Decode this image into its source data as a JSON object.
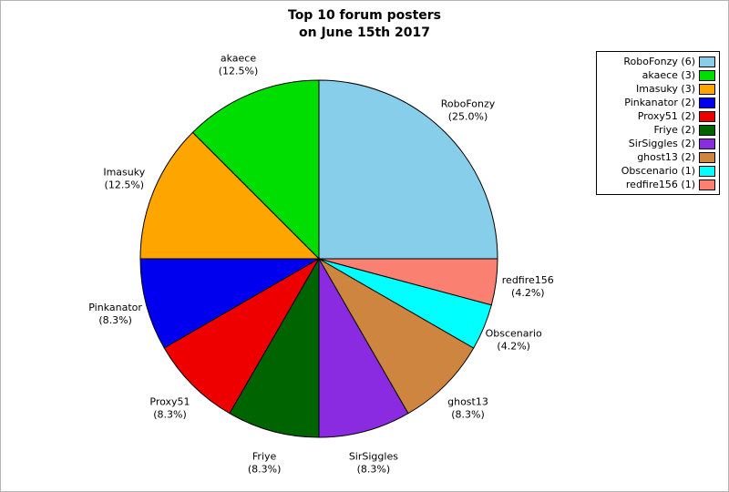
{
  "title": {
    "line1": "Top 10 forum posters",
    "line2": "on June 15th 2017"
  },
  "chart_data": {
    "type": "pie",
    "title": "Top 10 forum posters on June 15th 2017",
    "start_angle_deg": 0,
    "direction": "counterclockwise",
    "legend_position": "top-right",
    "slices": [
      {
        "label": "RoboFonzy",
        "count": 6,
        "value_percent": 25.0,
        "percent_label": "(25.0%)",
        "legend_label": "RoboFonzy (6)",
        "color": "#87CEEB"
      },
      {
        "label": "akaece",
        "count": 3,
        "value_percent": 12.5,
        "percent_label": "(12.5%)",
        "legend_label": "akaece (3)",
        "color": "#00DD00"
      },
      {
        "label": "Imasuky",
        "count": 3,
        "value_percent": 12.5,
        "percent_label": "(12.5%)",
        "legend_label": "Imasuky (3)",
        "color": "#FFA500"
      },
      {
        "label": "Pinkanator",
        "count": 2,
        "value_percent": 8.3,
        "percent_label": "(8.3%)",
        "legend_label": "Pinkanator (2)",
        "color": "#0000EE"
      },
      {
        "label": "Proxy51",
        "count": 2,
        "value_percent": 8.3,
        "percent_label": "(8.3%)",
        "legend_label": "Proxy51 (2)",
        "color": "#EE0000"
      },
      {
        "label": "Friye",
        "count": 2,
        "value_percent": 8.3,
        "percent_label": "(8.3%)",
        "legend_label": "Friye (2)",
        "color": "#006400"
      },
      {
        "label": "SirSiggles",
        "count": 2,
        "value_percent": 8.3,
        "percent_label": "(8.3%)",
        "legend_label": "SirSiggles (2)",
        "color": "#8A2BE2"
      },
      {
        "label": "ghost13",
        "count": 2,
        "value_percent": 8.3,
        "percent_label": "(8.3%)",
        "legend_label": "ghost13 (2)",
        "color": "#CD853F"
      },
      {
        "label": "Obscenario",
        "count": 1,
        "value_percent": 4.2,
        "percent_label": "(4.2%)",
        "legend_label": "Obscenario (1)",
        "color": "#00FFFF"
      },
      {
        "label": "redfire156",
        "count": 1,
        "value_percent": 4.2,
        "percent_label": "(4.2%)",
        "legend_label": "redfire156 (1)",
        "color": "#FA8072"
      }
    ]
  }
}
